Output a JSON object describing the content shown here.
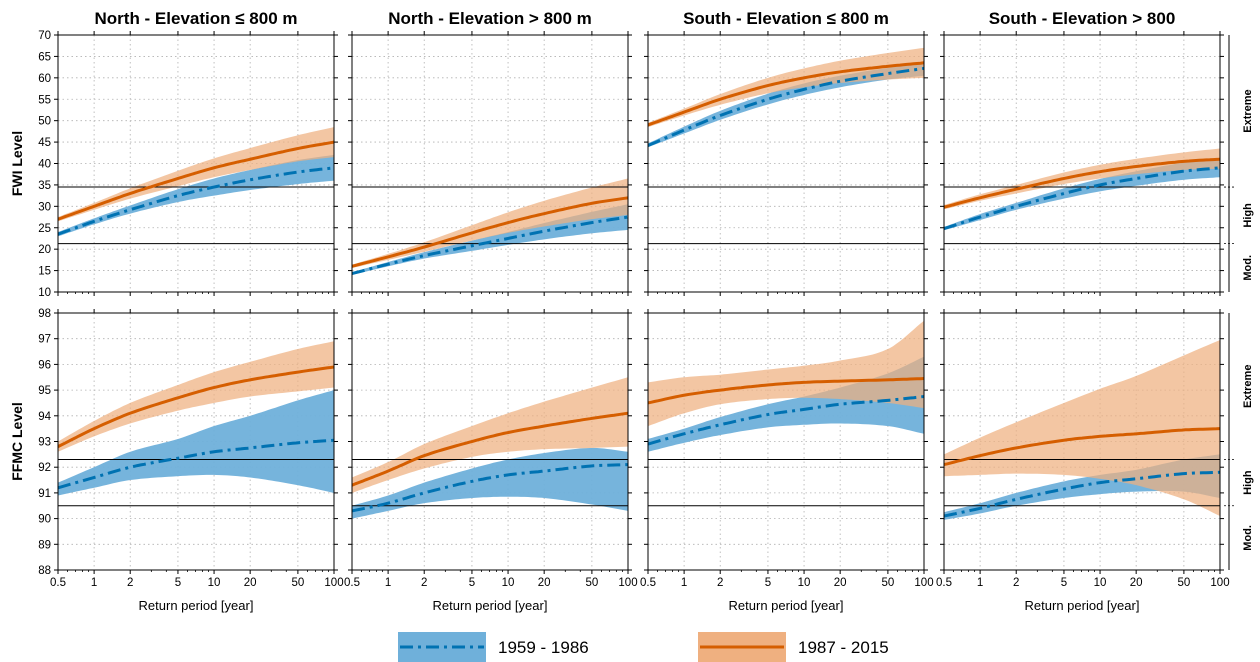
{
  "chart_data": {
    "type": "line",
    "x_scale": "log",
    "x_ticks": [
      0.5,
      1,
      2,
      5,
      10,
      20,
      50,
      100
    ],
    "x_tick_labels": [
      "0.5",
      "1",
      "2",
      "5",
      "10",
      "20",
      "50",
      "100"
    ],
    "xlim": [
      0.5,
      100
    ],
    "xlabel": "Return period [year]",
    "grid": true,
    "legend_position": "bottom-center",
    "legend": [
      {
        "label": "1959 - 1986",
        "color": "#0072b2",
        "band_color": "#6fb0da",
        "line_style": "dash-dot"
      },
      {
        "label": "1987 - 2015",
        "color": "#d55e00",
        "band_color": "#efb080",
        "line_style": "solid"
      }
    ],
    "column_titles": [
      "North - Elevation ≤ 800 m",
      "North - Elevation > 800 m",
      "South - Elevation ≤ 800 m",
      "South - Elevation > 800"
    ],
    "rows": [
      {
        "ylabel": "FWI Level",
        "ylim": [
          10,
          70
        ],
        "y_ticks": [
          10,
          15,
          20,
          25,
          30,
          35,
          40,
          45,
          50,
          55,
          60,
          65,
          70
        ],
        "thresholds": [
          21.3,
          34.5
        ],
        "classes": [
          {
            "label": "Mod.",
            "range": [
              10,
              21.3
            ]
          },
          {
            "label": "High",
            "range": [
              21.3,
              34.5
            ]
          },
          {
            "label": "Extreme",
            "range": [
              34.5,
              70
            ]
          }
        ]
      },
      {
        "ylabel": "FFMC Level",
        "ylim": [
          88,
          98
        ],
        "y_ticks": [
          88,
          89,
          90,
          91,
          92,
          93,
          94,
          95,
          96,
          97,
          98
        ],
        "thresholds": [
          90.5,
          92.3
        ],
        "classes": [
          {
            "label": "Mod.",
            "range": [
              88,
              90.5
            ]
          },
          {
            "label": "High",
            "range": [
              90.5,
              92.3
            ]
          },
          {
            "label": "Extreme",
            "range": [
              92.3,
              98
            ]
          }
        ]
      }
    ],
    "panels": [
      {
        "row": 0,
        "col": 0,
        "x": [
          0.5,
          1,
          2,
          5,
          10,
          20,
          50,
          100
        ],
        "series": [
          {
            "name": "1959 - 1986",
            "values": [
              23.5,
              26.5,
              29.2,
              32.5,
              34.5,
              36.2,
              38,
              39
            ],
            "lower": [
              23,
              25.8,
              28.3,
              31,
              32.5,
              33.8,
              35.2,
              36
            ],
            "upper": [
              24,
              27.2,
              30.2,
              34,
              36.5,
              38.5,
              40.8,
              42
            ]
          },
          {
            "name": "1987 - 2015",
            "values": [
              27,
              30,
              33,
              36.5,
              39,
              41,
              43.5,
              45
            ],
            "lower": [
              26.5,
              29.2,
              31.8,
              34.7,
              36.8,
              38.5,
              40.5,
              41.5
            ],
            "upper": [
              27.5,
              30.8,
              34.2,
              38.3,
              41.2,
              43.6,
              46.6,
              48.5
            ]
          }
        ]
      },
      {
        "row": 0,
        "col": 1,
        "x": [
          0.5,
          1,
          2,
          5,
          10,
          20,
          50,
          100
        ],
        "series": [
          {
            "name": "1959 - 1986",
            "values": [
              14.3,
              16.5,
              18.5,
              20.8,
              22.5,
              24.2,
              26.2,
              27.5
            ],
            "lower": [
              14,
              16,
              17.8,
              19.6,
              21,
              22.3,
              23.7,
              24.5
            ],
            "upper": [
              14.6,
              17,
              19.3,
              22,
              24,
              26.1,
              28.7,
              30.5
            ]
          },
          {
            "name": "1987 - 2015",
            "values": [
              16,
              18.2,
              20.5,
              23.8,
              26.2,
              28.3,
              30.7,
              32
            ],
            "lower": [
              15.6,
              17.5,
              19.4,
              22,
              23.8,
              25.3,
              27,
              28
            ],
            "upper": [
              16.4,
              18.9,
              21.6,
              25.6,
              28.6,
              31.3,
              34.4,
              36.5
            ]
          }
        ]
      },
      {
        "row": 0,
        "col": 2,
        "x": [
          0.5,
          1,
          2,
          5,
          10,
          20,
          50,
          100
        ],
        "series": [
          {
            "name": "1959 - 1986",
            "values": [
              44.2,
              47.8,
              51.2,
              55,
              57.3,
              59.2,
              61,
              62.2
            ],
            "lower": [
              43.8,
              47,
              50.2,
              53.8,
              56,
              57.8,
              59.6,
              60.5
            ],
            "upper": [
              44.7,
              48.6,
              52.3,
              56.3,
              58.7,
              60.5,
              62.3,
              63.2
            ]
          },
          {
            "name": "1987 - 2015",
            "values": [
              49,
              52,
              55,
              58.2,
              60,
              61.4,
              62.7,
              63.5
            ],
            "lower": [
              48.5,
              51.2,
              53.7,
              56.4,
              57.8,
              58.8,
              59.6,
              60
            ],
            "upper": [
              49.5,
              52.8,
              56.2,
              60,
              62.2,
              64,
              65.8,
              67
            ]
          }
        ]
      },
      {
        "row": 0,
        "col": 3,
        "x": [
          0.5,
          1,
          2,
          5,
          10,
          20,
          50,
          100
        ],
        "series": [
          {
            "name": "1959 - 1986",
            "values": [
              24.8,
              27.5,
              30,
              33,
              35,
              36.5,
              38.2,
              39
            ],
            "lower": [
              24.4,
              26.8,
              29.2,
              31.8,
              33.5,
              34.8,
              36.2,
              36.8
            ],
            "upper": [
              25.2,
              28.2,
              30.8,
              34.2,
              36.4,
              38.2,
              40.2,
              41.2
            ]
          },
          {
            "name": "1987 - 2015",
            "values": [
              29.8,
              32,
              34,
              36.5,
              38.1,
              39.3,
              40.5,
              41
            ],
            "lower": [
              29.3,
              31.3,
              33,
              35.2,
              36.5,
              37.5,
              38.5,
              38.8
            ],
            "upper": [
              30.3,
              32.8,
              35,
              37.9,
              39.7,
              41.1,
              42.6,
              43.5
            ]
          }
        ]
      },
      {
        "row": 1,
        "col": 0,
        "x": [
          0.5,
          1,
          2,
          5,
          10,
          20,
          50,
          100
        ],
        "series": [
          {
            "name": "1959 - 1986",
            "values": [
              91.2,
              91.6,
              92,
              92.35,
              92.6,
              92.75,
              92.95,
              93.05
            ],
            "lower": [
              90.9,
              91.2,
              91.5,
              91.65,
              91.7,
              91.6,
              91.3,
              91
            ],
            "upper": [
              91.4,
              92,
              92.6,
              93.1,
              93.6,
              94,
              94.6,
              95
            ]
          },
          {
            "name": "1987 - 2015",
            "values": [
              92.8,
              93.5,
              94.1,
              94.7,
              95.1,
              95.4,
              95.7,
              95.9
            ],
            "lower": [
              92.6,
              93.2,
              93.7,
              94.2,
              94.5,
              94.75,
              94.95,
              95.1
            ],
            "upper": [
              93,
              93.8,
              94.5,
              95.2,
              95.7,
              96.1,
              96.6,
              96.9
            ]
          }
        ]
      },
      {
        "row": 1,
        "col": 1,
        "x": [
          0.5,
          1,
          2,
          5,
          10,
          20,
          50,
          100
        ],
        "series": [
          {
            "name": "1959 - 1986",
            "values": [
              90.3,
              90.6,
              91,
              91.45,
              91.7,
              91.85,
              92.05,
              92.1
            ],
            "lower": [
              90.0,
              90.3,
              90.6,
              90.8,
              90.85,
              90.8,
              90.55,
              90.3
            ],
            "upper": [
              90.5,
              90.9,
              91.4,
              91.95,
              92.3,
              92.55,
              92.75,
              92.6
            ]
          },
          {
            "name": "1987 - 2015",
            "values": [
              91.3,
              91.85,
              92.45,
              93,
              93.35,
              93.6,
              93.9,
              94.1
            ],
            "lower": [
              91.0,
              91.5,
              91.95,
              92.4,
              92.6,
              92.7,
              92.75,
              92.8
            ],
            "upper": [
              91.6,
              92.2,
              92.9,
              93.6,
              94.1,
              94.55,
              95.1,
              95.5
            ]
          }
        ]
      },
      {
        "row": 1,
        "col": 2,
        "x": [
          0.5,
          1,
          2,
          5,
          10,
          20,
          50,
          100
        ],
        "series": [
          {
            "name": "1959 - 1986",
            "values": [
              92.9,
              93.3,
              93.65,
              94.05,
              94.25,
              94.45,
              94.6,
              94.75
            ],
            "lower": [
              92.6,
              92.95,
              93.25,
              93.55,
              93.65,
              93.7,
              93.6,
              93.3
            ],
            "upper": [
              93.1,
              93.5,
              93.95,
              94.45,
              94.75,
              95.1,
              95.65,
              96.3
            ]
          },
          {
            "name": "1987 - 2015",
            "values": [
              94.5,
              94.8,
              95,
              95.2,
              95.3,
              95.35,
              95.4,
              95.45
            ],
            "lower": [
              93.6,
              94.1,
              94.45,
              94.65,
              94.7,
              94.65,
              94.5,
              94.3
            ],
            "upper": [
              95.3,
              95.5,
              95.6,
              95.8,
              95.95,
              96.15,
              96.6,
              97.7
            ]
          }
        ]
      },
      {
        "row": 1,
        "col": 3,
        "x": [
          0.5,
          1,
          2,
          5,
          10,
          20,
          50,
          100
        ],
        "series": [
          {
            "name": "1959 - 1986",
            "values": [
              90.1,
              90.4,
              90.75,
              91.15,
              91.4,
              91.55,
              91.75,
              91.8
            ],
            "lower": [
              89.95,
              90.2,
              90.5,
              90.8,
              90.95,
              91.05,
              91.05,
              90.8
            ],
            "upper": [
              90.25,
              90.6,
              91,
              91.45,
              91.7,
              91.9,
              92.3,
              92.5
            ]
          },
          {
            "name": "1987 - 2015",
            "values": [
              92.1,
              92.45,
              92.75,
              93.05,
              93.2,
              93.3,
              93.45,
              93.5
            ],
            "lower": [
              91.65,
              91.7,
              91.75,
              91.7,
              91.55,
              91.3,
              90.75,
              90.1
            ],
            "upper": [
              92.5,
              93.15,
              93.75,
              94.5,
              95.05,
              95.55,
              96.35,
              96.95
            ]
          }
        ]
      }
    ]
  }
}
